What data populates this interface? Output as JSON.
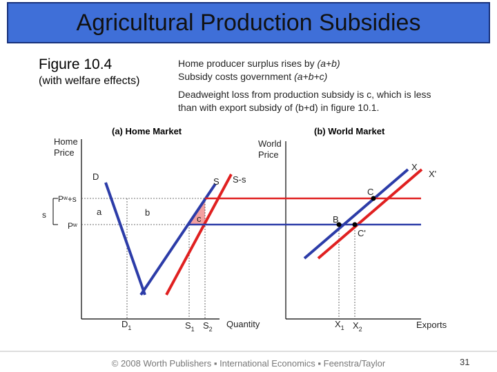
{
  "slide": {
    "title": "Agricultural Production Subsidies",
    "figure_title": "Figure 10.4",
    "figure_subtitle": "(with welfare effects)",
    "notes": {
      "line1_text": "Home producer surplus rises by ",
      "line1_italic": "(a+b)",
      "line2_text": "Subsidy costs government ",
      "line2_italic": "(a+b+c)",
      "line3": "Deadweight loss from production subsidy is c, which is less",
      "line4": "than with export subsidy of (b+d) in figure 10.1."
    },
    "footer": "© 2008 Worth Publishers ▪ International Economics ▪ Feenstra/Taylor",
    "page_number": "31"
  },
  "home_market": {
    "title": "(a) Home Market",
    "y_axis_label_line1": "Home",
    "y_axis_label_line2": "Price",
    "x_axis_label": "Quantity",
    "price_labels": {
      "pw_plus_s": "Pʷ+s",
      "pw": "Pʷ",
      "s": "s"
    },
    "curve_labels": {
      "D": "D",
      "S": "S",
      "S_minus_s": "S-s"
    },
    "area_labels": {
      "a": "a",
      "b": "b",
      "c": "c"
    },
    "quantity_labels": {
      "D1": "D",
      "D1_sub": "1",
      "S1": "S",
      "S1_sub": "1",
      "S2": "S",
      "S2_sub": "2"
    }
  },
  "world_market": {
    "title": "(b) World Market",
    "y_axis_label_line1": "World",
    "y_axis_label_line2": "Price",
    "x_axis_label": "Exports",
    "curve_labels": {
      "X": "X",
      "X_prime": "X'"
    },
    "point_labels": {
      "C": "C",
      "B": "B",
      "C_prime": "C'"
    },
    "quantity_labels": {
      "X1": "X",
      "X1_sub": "1",
      "X2": "X",
      "X2_sub": "2"
    }
  },
  "colors": {
    "title_bg": "#3f6fd8",
    "supply_red": "#e02020",
    "demand_blue": "#2c3ca8",
    "area_c_fill": "#f3a0a0",
    "axis": "#000000"
  }
}
